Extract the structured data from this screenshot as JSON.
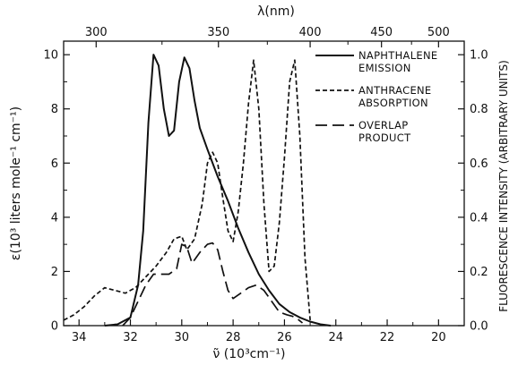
{
  "chart_data": {
    "type": "line",
    "axes": {
      "x_bottom": {
        "label": "ν̃ (10³cm⁻¹)",
        "range": [
          34.6,
          19.0
        ],
        "ticks": [
          "34",
          "32",
          "30",
          "28",
          "26",
          "24",
          "22",
          "20"
        ]
      },
      "x_top": {
        "label": "λ(nm)",
        "ticks": [
          "300",
          "350",
          "400",
          "450",
          "500"
        ]
      },
      "y_left": {
        "label": "ε(10³ liters mole⁻¹ cm⁻¹)",
        "range": [
          0,
          10.5
        ],
        "ticks": [
          "0",
          "2",
          "4",
          "6",
          "8",
          "10"
        ]
      },
      "y_right": {
        "label": "FLUORESCENCE INTENSITY (ARBITRARY UNITS)",
        "range": [
          0,
          1.05
        ],
        "ticks": [
          "0.0",
          "0.2",
          "0.4",
          "0.6",
          "0.8",
          "1.0"
        ]
      }
    },
    "series": [
      {
        "name": "NAPHTHALENE EMISSION",
        "style": "solid",
        "x": [
          33.0,
          32.5,
          32.0,
          31.7,
          31.5,
          31.3,
          31.1,
          30.9,
          30.7,
          30.5,
          30.3,
          30.1,
          29.9,
          29.7,
          29.5,
          29.3,
          29.0,
          28.6,
          28.2,
          27.8,
          27.4,
          27.0,
          26.6,
          26.2,
          25.8,
          25.4,
          25.0,
          24.6,
          24.2
        ],
        "y": [
          0.0,
          0.05,
          0.3,
          1.5,
          3.5,
          7.5,
          10.0,
          9.6,
          8.0,
          7.0,
          7.2,
          9.0,
          9.9,
          9.5,
          8.3,
          7.3,
          6.5,
          5.5,
          4.6,
          3.6,
          2.7,
          1.9,
          1.3,
          0.8,
          0.5,
          0.3,
          0.15,
          0.05,
          0.0
        ]
      },
      {
        "name": "ANTHRACENE ABSORPTION",
        "style": "dashed",
        "x": [
          34.6,
          34.2,
          33.8,
          33.4,
          33.0,
          32.6,
          32.2,
          31.8,
          31.4,
          31.0,
          30.6,
          30.3,
          30.0,
          29.8,
          29.5,
          29.2,
          29.0,
          28.8,
          28.6,
          28.4,
          28.2,
          28.0,
          27.8,
          27.6,
          27.4,
          27.2,
          27.0,
          26.8,
          26.6,
          26.4,
          26.2,
          26.0,
          25.8,
          25.6,
          25.4,
          25.2,
          25.0
        ],
        "y": [
          0.2,
          0.4,
          0.7,
          1.1,
          1.4,
          1.3,
          1.2,
          1.4,
          1.8,
          2.2,
          2.7,
          3.2,
          3.3,
          2.8,
          3.2,
          4.5,
          6.0,
          6.4,
          6.0,
          4.7,
          3.5,
          3.1,
          4.2,
          6.0,
          8.2,
          9.8,
          8.0,
          4.5,
          2.0,
          2.2,
          3.8,
          6.2,
          9.0,
          9.8,
          7.0,
          2.5,
          0.2
        ]
      },
      {
        "name": "OVERLAP PRODUCT",
        "style": "long-dash",
        "x": [
          32.3,
          32.0,
          31.7,
          31.4,
          31.1,
          30.8,
          30.5,
          30.2,
          30.0,
          29.8,
          29.6,
          29.3,
          29.0,
          28.8,
          28.6,
          28.4,
          28.2,
          28.0,
          27.7,
          27.4,
          27.1,
          26.8,
          26.5,
          26.2,
          25.9,
          25.7,
          25.5,
          25.3
        ],
        "y": [
          0.0,
          0.3,
          0.9,
          1.5,
          1.9,
          1.9,
          1.9,
          2.1,
          3.0,
          2.9,
          2.3,
          2.7,
          3.0,
          3.05,
          2.8,
          2.0,
          1.3,
          1.0,
          1.2,
          1.4,
          1.5,
          1.3,
          0.9,
          0.5,
          0.4,
          0.35,
          0.25,
          0.1
        ]
      }
    ],
    "legend": {
      "placement": "top-right",
      "entries": [
        {
          "line1": "NAPHTHALENE",
          "line2": "EMISSION",
          "style": "solid"
        },
        {
          "line1": "ANTHRACENE",
          "line2": "ABSORPTION",
          "style": "dashed"
        },
        {
          "line1": "OVERLAP",
          "line2": "PRODUCT",
          "style": "long-dash"
        }
      ]
    },
    "grid": false
  }
}
